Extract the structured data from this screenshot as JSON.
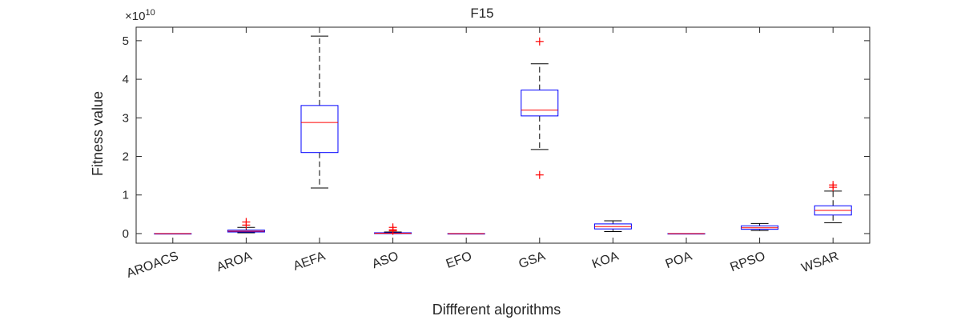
{
  "chart_data": {
    "type": "box",
    "title": "F15",
    "xlabel": "Diffferent algorithms",
    "ylabel": "Fitness value",
    "y_exponent_label": "×10",
    "y_exponent": "10",
    "ylim": [
      -0.25,
      5.35
    ],
    "yticks": [
      0,
      1,
      2,
      3,
      4,
      5
    ],
    "categories": [
      "AROACS",
      "AROA",
      "AEFA",
      "ASO",
      "EFO",
      "GSA",
      "KOA",
      "POA",
      "RPSO",
      "WSAR"
    ],
    "boxes": [
      {
        "whisker_low": 0.0,
        "q1": 0.0,
        "median": 0.0,
        "q3": 0.0,
        "whisker_high": 0.0,
        "outliers": []
      },
      {
        "whisker_low": 0.02,
        "q1": 0.04,
        "median": 0.06,
        "q3": 0.09,
        "whisker_high": 0.16,
        "outliers": [
          0.22,
          0.3
        ]
      },
      {
        "whisker_low": 1.18,
        "q1": 2.1,
        "median": 2.88,
        "q3": 3.32,
        "whisker_high": 5.12,
        "outliers": []
      },
      {
        "whisker_low": 0.0,
        "q1": 0.0,
        "median": 0.01,
        "q3": 0.02,
        "whisker_high": 0.04,
        "outliers": [
          0.07,
          0.1,
          0.16
        ]
      },
      {
        "whisker_low": 0.0,
        "q1": 0.0,
        "median": 0.0,
        "q3": 0.0,
        "whisker_high": 0.0,
        "outliers": []
      },
      {
        "whisker_low": 2.18,
        "q1": 3.05,
        "median": 3.2,
        "q3": 3.72,
        "whisker_high": 4.4,
        "outliers": [
          1.52,
          4.98
        ]
      },
      {
        "whisker_low": 0.05,
        "q1": 0.12,
        "median": 0.18,
        "q3": 0.25,
        "whisker_high": 0.33,
        "outliers": []
      },
      {
        "whisker_low": 0.0,
        "q1": 0.0,
        "median": 0.0,
        "q3": 0.0,
        "whisker_high": 0.0,
        "outliers": []
      },
      {
        "whisker_low": 0.08,
        "q1": 0.11,
        "median": 0.15,
        "q3": 0.2,
        "whisker_high": 0.26,
        "outliers": []
      },
      {
        "whisker_low": 0.28,
        "q1": 0.48,
        "median": 0.6,
        "q3": 0.72,
        "whisker_high": 1.1,
        "outliers": [
          1.2,
          1.26
        ]
      }
    ],
    "grid": false,
    "colors": {
      "box": "#0000ff",
      "median": "#ff0000",
      "whisker": "#000000",
      "outlier": "#ff0000",
      "axis": "#262626"
    }
  }
}
